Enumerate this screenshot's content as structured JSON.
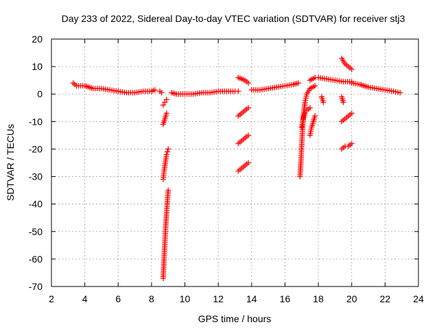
{
  "chart_data": {
    "type": "scatter",
    "title": "Day 233 of 2022, Sidereal Day-to-day VTEC variation (SDTVAR) for receiver stj3",
    "xlabel": "GPS time / hours",
    "ylabel": "SDTVAR / TECUs",
    "xlim": [
      2,
      24
    ],
    "ylim": [
      -70,
      20
    ],
    "xticks": [
      2,
      4,
      6,
      8,
      10,
      12,
      14,
      16,
      18,
      20,
      22,
      24
    ],
    "yticks": [
      -70,
      -60,
      -50,
      -40,
      -30,
      -20,
      -10,
      0,
      10,
      20
    ],
    "grid": true,
    "marker": "+",
    "series": [
      {
        "name": "SDTVAR",
        "color": "#ff0000",
        "segments": [
          {
            "x": [
              3.3,
              3.5,
              4.0,
              4.5,
              5.0,
              5.5,
              6.0,
              6.5,
              7.0,
              7.5,
              8.0,
              8.2
            ],
            "y": [
              4,
              3,
              3,
              2,
              2,
              1.5,
              1,
              0.5,
              0.5,
              1,
              1,
              1.5
            ]
          },
          {
            "x": [
              8.5,
              8.6
            ],
            "y": [
              1,
              0.5
            ]
          },
          {
            "x": [
              8.7,
              8.8,
              8.9
            ],
            "y": [
              -4,
              -3,
              -2
            ]
          },
          {
            "x": [
              8.7,
              8.8,
              8.9
            ],
            "y": [
              -11,
              -9,
              -7
            ]
          },
          {
            "x": [
              8.7,
              8.75,
              8.8,
              8.85,
              8.9,
              8.95,
              9.0
            ],
            "y": [
              -31,
              -28,
              -26,
              -24,
              -22,
              -21,
              -20
            ]
          },
          {
            "x": [
              8.7,
              8.75,
              8.8,
              8.85,
              8.9,
              8.95,
              9.0
            ],
            "y": [
              -67,
              -60,
              -54,
              -48,
              -43,
              -39,
              -35
            ]
          },
          {
            "x": [
              9.2,
              9.5,
              10.0,
              10.5,
              11.0,
              11.5,
              12.0,
              12.5,
              13.0,
              13.2
            ],
            "y": [
              0.5,
              0,
              0,
              0,
              0.5,
              0.5,
              1,
              1,
              1,
              1
            ]
          },
          {
            "x": [
              13.2,
              13.4,
              13.6,
              13.8
            ],
            "y": [
              6,
              5.5,
              5,
              4
            ]
          },
          {
            "x": [
              13.2,
              13.4,
              13.6,
              13.8
            ],
            "y": [
              -8,
              -7,
              -6,
              -5
            ]
          },
          {
            "x": [
              13.2,
              13.4,
              13.6,
              13.8
            ],
            "y": [
              -18,
              -17,
              -16,
              -15
            ]
          },
          {
            "x": [
              13.2,
              13.4,
              13.6,
              13.8
            ],
            "y": [
              -28,
              -27,
              -26,
              -25
            ]
          },
          {
            "x": [
              14.0,
              14.5,
              15.0,
              15.5,
              16.0,
              16.5,
              16.8
            ],
            "y": [
              1.5,
              1.5,
              2,
              2.5,
              3,
              3.5,
              4
            ]
          },
          {
            "x": [
              16.9,
              16.95,
              17.0,
              17.05,
              17.1,
              17.2,
              17.3,
              17.5,
              17.8
            ],
            "y": [
              -30,
              -25,
              -19,
              -13,
              -8,
              -3,
              0,
              2,
              3
            ]
          },
          {
            "x": [
              17.0,
              17.1,
              17.2,
              17.3,
              17.5
            ],
            "y": [
              -12,
              -9,
              -7,
              -6,
              -5
            ]
          },
          {
            "x": [
              17.5,
              17.6,
              17.7,
              17.8
            ],
            "y": [
              -15,
              -12,
              -10,
              -8
            ]
          },
          {
            "x": [
              17.5,
              17.8,
              18.0,
              18.5,
              19.0,
              19.5,
              20.0
            ],
            "y": [
              5,
              6,
              6,
              5.5,
              5,
              4.5,
              4.5
            ]
          },
          {
            "x": [
              18.2,
              18.3
            ],
            "y": [
              -1,
              -3
            ]
          },
          {
            "x": [
              19.4,
              19.6,
              19.8,
              20.0
            ],
            "y": [
              13,
              11,
              10,
              9
            ]
          },
          {
            "x": [
              19.4,
              19.5
            ],
            "y": [
              -1,
              -3
            ]
          },
          {
            "x": [
              19.4,
              19.6,
              19.8,
              20.0
            ],
            "y": [
              -10,
              -9,
              -8,
              -7
            ]
          },
          {
            "x": [
              19.4,
              19.6,
              19.8,
              20.0
            ],
            "y": [
              -20,
              -19,
              -19,
              -18
            ]
          },
          {
            "x": [
              20.0,
              20.5,
              21.0,
              21.5,
              22.0,
              22.5,
              22.9
            ],
            "y": [
              4,
              3.5,
              2.5,
              2,
              1.5,
              1,
              0.5
            ]
          }
        ]
      }
    ]
  }
}
